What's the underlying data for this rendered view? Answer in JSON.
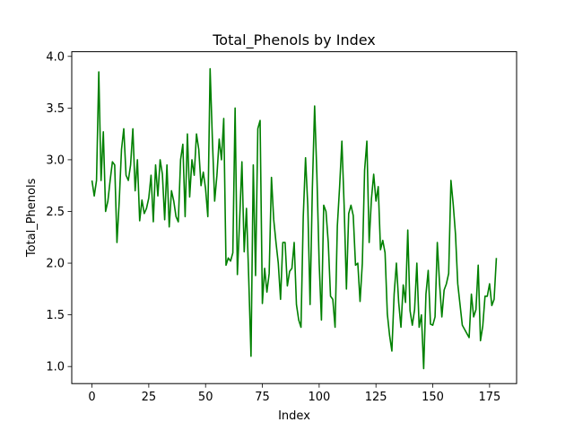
{
  "chart_data": {
    "type": "line",
    "title": "Total_Phenols by Index",
    "xlabel": "Index",
    "ylabel": "Total_Phenols",
    "xlim": [
      -8.9,
      186.9
    ],
    "ylim": [
      0.835,
      4.045
    ],
    "xticks": [
      0,
      25,
      50,
      75,
      100,
      125,
      150,
      175
    ],
    "yticks": [
      1.0,
      1.5,
      2.0,
      2.5,
      3.0,
      3.5,
      4.0
    ],
    "ytick_labels": [
      "1.0",
      "1.5",
      "2.0",
      "2.5",
      "3.0",
      "3.5",
      "4.0"
    ],
    "grid": false,
    "legend": "none",
    "series": [
      {
        "color": "#008000",
        "values": [
          2.8,
          2.65,
          2.8,
          3.85,
          2.8,
          3.27,
          2.5,
          2.6,
          2.8,
          2.98,
          2.95,
          2.2,
          2.6,
          3.1,
          3.3,
          2.85,
          2.8,
          2.95,
          3.3,
          2.7,
          3.0,
          2.41,
          2.61,
          2.48,
          2.53,
          2.63,
          2.85,
          2.4,
          2.95,
          2.65,
          3.0,
          2.86,
          2.42,
          2.95,
          2.35,
          2.7,
          2.6,
          2.45,
          2.4,
          3.0,
          3.15,
          2.45,
          3.25,
          2.64,
          3.0,
          2.85,
          3.25,
          3.1,
          2.75,
          2.88,
          2.72,
          2.45,
          3.88,
          3.2,
          2.6,
          2.85,
          3.2,
          3.0,
          3.4,
          1.98,
          2.05,
          2.02,
          2.1,
          3.5,
          1.89,
          2.42,
          2.98,
          2.11,
          2.53,
          1.85,
          1.1,
          2.95,
          1.88,
          3.3,
          3.38,
          1.61,
          1.95,
          1.72,
          1.9,
          2.83,
          2.42,
          2.2,
          2.0,
          1.65,
          2.2,
          2.2,
          1.78,
          1.92,
          1.95,
          2.2,
          1.6,
          1.45,
          1.38,
          2.45,
          3.02,
          2.55,
          1.6,
          2.72,
          3.52,
          2.85,
          2.0,
          1.45,
          2.56,
          2.5,
          2.2,
          1.68,
          1.65,
          1.38,
          2.36,
          2.74,
          3.18,
          2.55,
          1.75,
          2.48,
          2.56,
          2.46,
          1.98,
          2.0,
          1.63,
          2.0,
          2.9,
          3.18,
          2.2,
          2.62,
          2.86,
          2.6,
          2.74,
          2.13,
          2.22,
          2.1,
          1.51,
          1.3,
          1.15,
          1.7,
          2.0,
          1.62,
          1.38,
          1.79,
          1.62,
          2.32,
          1.54,
          1.4,
          1.55,
          2.0,
          1.38,
          1.5,
          0.98,
          1.7,
          1.93,
          1.41,
          1.4,
          1.48,
          2.2,
          1.8,
          1.48,
          1.74,
          1.8,
          1.9,
          2.8,
          2.57,
          2.28,
          1.8,
          1.6,
          1.4,
          1.36,
          1.32,
          1.28,
          1.7,
          1.48,
          1.55,
          1.98,
          1.25,
          1.39,
          1.68,
          1.68,
          1.8,
          1.59,
          1.65,
          2.05
        ]
      }
    ]
  }
}
